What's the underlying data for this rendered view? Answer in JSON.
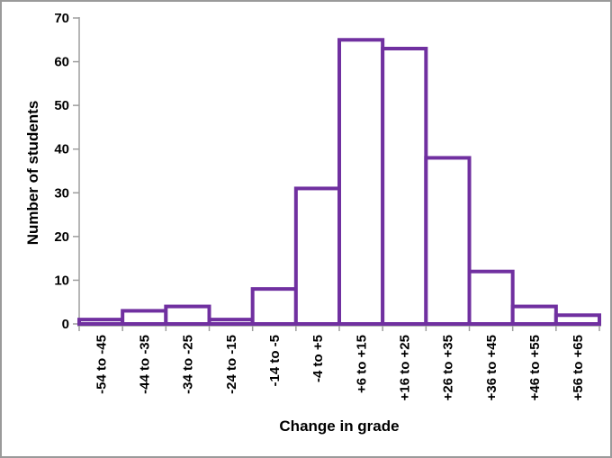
{
  "chart_data": {
    "type": "bar",
    "subtype": "histogram",
    "title": "",
    "xlabel": "Change in grade",
    "ylabel": "Number of students",
    "categories": [
      "-54 to -45",
      "-44 to -35",
      "-34 to -25",
      "-24 to -15",
      "-14 to -5",
      "-4 to +5",
      "+6 to +15",
      "+16 to +25",
      "+26 to +35",
      "+36 to +45",
      "+46 to +55",
      "+56 to +65"
    ],
    "values": [
      1,
      3,
      4,
      1,
      8,
      31,
      65,
      63,
      38,
      12,
      4,
      2
    ],
    "ylim": [
      0,
      70
    ],
    "yticks": [
      0,
      10,
      20,
      30,
      40,
      50,
      60,
      70
    ],
    "grid": false,
    "legend_position": "none",
    "colors": {
      "bar_outline": "#7030A0",
      "bar_fill": "#FFFFFF",
      "axis": "#9E9E9E",
      "text": "#000000",
      "frame_border": "#9A9A9A"
    }
  }
}
